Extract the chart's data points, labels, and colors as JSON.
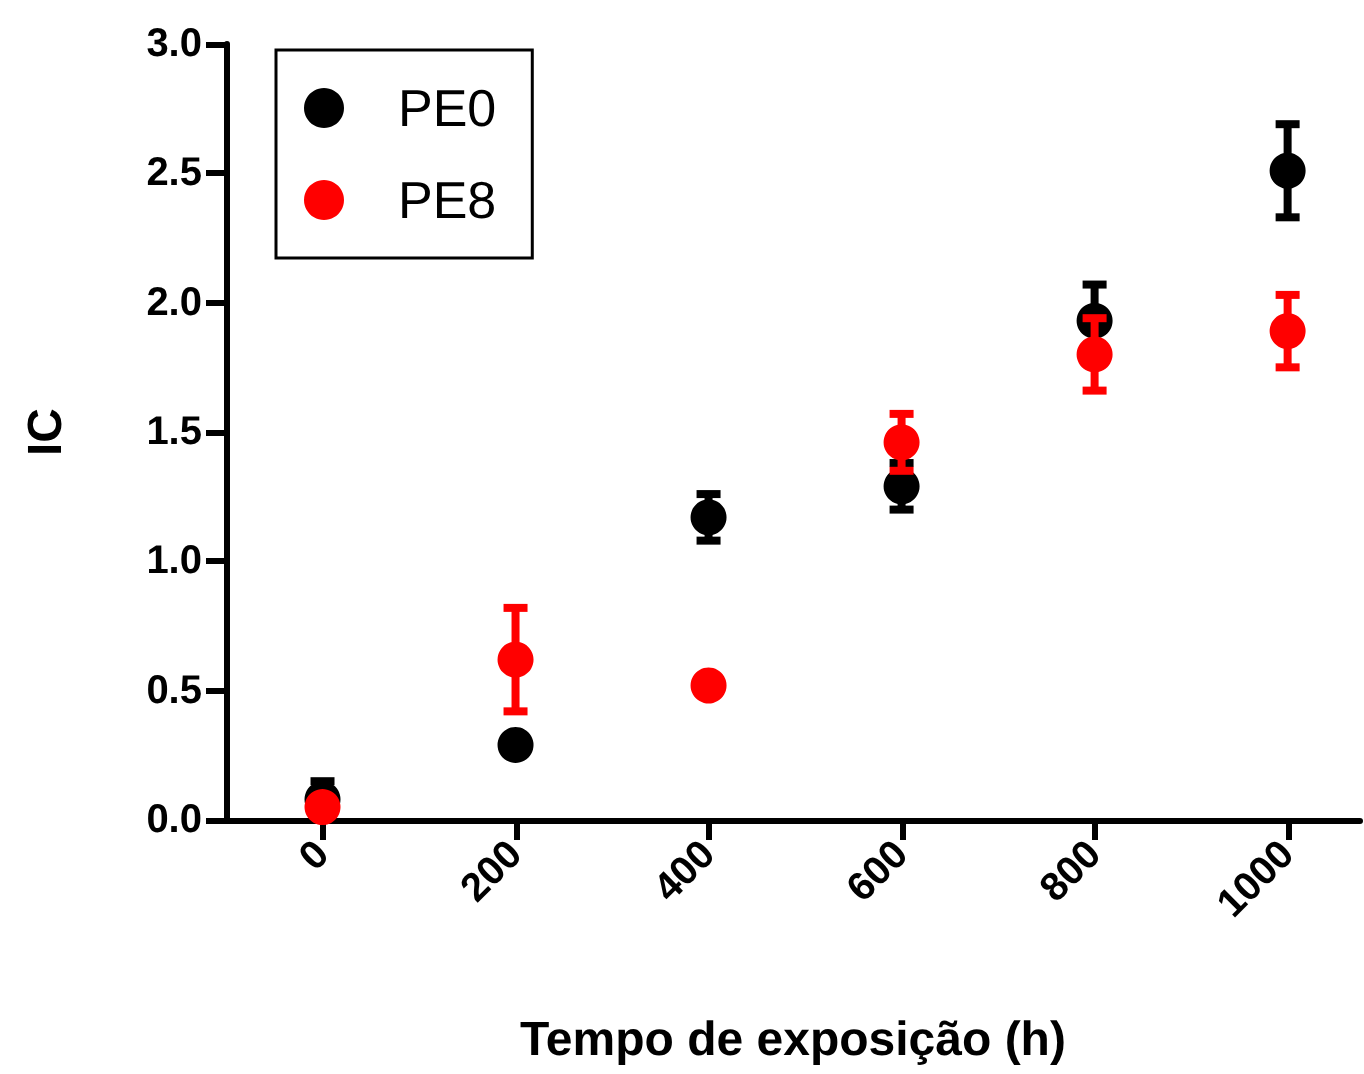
{
  "chart_data": {
    "type": "scatter",
    "xlabel": "Tempo de exposição (h)",
    "ylabel": "IC",
    "x": [
      0,
      200,
      400,
      600,
      800,
      1000
    ],
    "series": [
      {
        "name": "PE0",
        "color": "#000000",
        "values": [
          0.08,
          0.29,
          1.17,
          1.29,
          1.93,
          2.51
        ],
        "errors": [
          0.07,
          null,
          0.09,
          0.09,
          0.14,
          0.18
        ]
      },
      {
        "name": "PE8",
        "color": "#ff0000",
        "values": [
          0.05,
          0.62,
          0.52,
          1.46,
          1.8,
          1.89
        ],
        "errors": [
          null,
          0.2,
          null,
          0.11,
          0.14,
          0.14
        ]
      }
    ],
    "xlim": [
      -100,
      1075
    ],
    "xticks": [
      0,
      200,
      400,
      600,
      800,
      1000
    ],
    "ylim": [
      0,
      3
    ],
    "yticks": [
      {
        "value": 0,
        "label": "0.0"
      },
      {
        "value": 0.5,
        "label": "0.5"
      },
      {
        "value": 1,
        "label": "1.0"
      },
      {
        "value": 1.5,
        "label": "1.5"
      },
      {
        "value": 2,
        "label": "2.0"
      },
      {
        "value": 2.5,
        "label": "2.5"
      },
      {
        "value": 3,
        "label": "3.0"
      }
    ],
    "marker": "circle",
    "legend": "top left",
    "grid": false
  }
}
